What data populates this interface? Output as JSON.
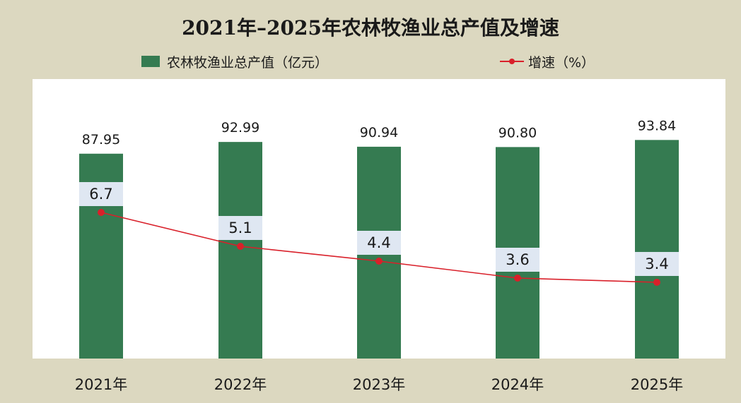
{
  "colors": {
    "background": "#dcd8c0",
    "plot_background": "#ffffff",
    "bar": "#357b51",
    "line": "#d9202a",
    "label_box": "#dfe7f2",
    "text": "#1a1a1a"
  },
  "chart_data": {
    "type": "bar",
    "title": "2021年–2025年农林牧渔业总产值及增速",
    "categories": [
      "2021年",
      "2022年",
      "2023年",
      "2024年",
      "2025年"
    ],
    "series": [
      {
        "name": "农林牧渔业总产值（亿元）",
        "type": "bar",
        "values": [
          87.95,
          92.99,
          90.94,
          90.8,
          93.84
        ],
        "labels": [
          "87.95",
          "92.99",
          "90.94",
          "90.80",
          "93.84"
        ],
        "ylim": [
          0,
          120
        ]
      },
      {
        "name": "增速（%）",
        "type": "line",
        "values": [
          6.7,
          5.1,
          4.4,
          3.6,
          3.4
        ],
        "labels": [
          "6.7",
          "5.1",
          "4.4",
          "3.6",
          "3.4"
        ],
        "ylim": [
          -0.2,
          13.0
        ]
      }
    ],
    "legend_position": "top",
    "grid": false
  }
}
